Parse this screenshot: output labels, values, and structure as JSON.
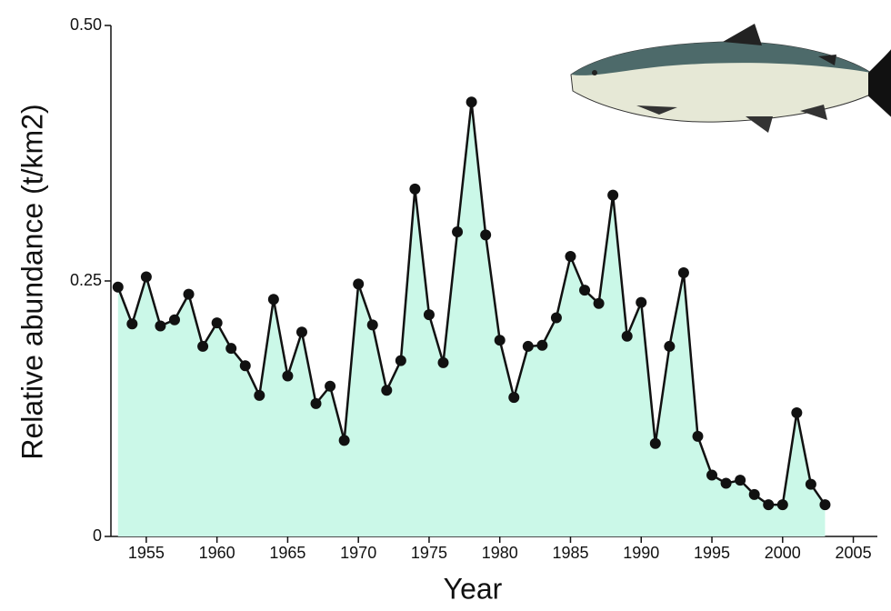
{
  "chart_data": {
    "type": "line",
    "x_label": "Year",
    "y_label": "Relative abundance (t/km2)",
    "x": [
      1953,
      1954,
      1955,
      1956,
      1957,
      1958,
      1959,
      1960,
      1961,
      1962,
      1963,
      1964,
      1965,
      1966,
      1967,
      1968,
      1969,
      1970,
      1971,
      1972,
      1973,
      1974,
      1975,
      1976,
      1977,
      1978,
      1979,
      1980,
      1981,
      1982,
      1983,
      1984,
      1985,
      1986,
      1987,
      1988,
      1989,
      1990,
      1991,
      1992,
      1993,
      1994,
      1995,
      1996,
      1997,
      1998,
      1999,
      2000,
      2001,
      2002,
      2003
    ],
    "series": [
      {
        "color": "#111111",
        "fill": "#cbf8e8",
        "values": [
          0.244,
          0.208,
          0.254,
          0.206,
          0.212,
          0.237,
          0.186,
          0.209,
          0.184,
          0.167,
          0.138,
          0.232,
          0.157,
          0.2,
          0.13,
          0.147,
          0.094,
          0.247,
          0.207,
          0.143,
          0.172,
          0.34,
          0.217,
          0.17,
          0.298,
          0.425,
          0.295,
          0.192,
          0.136,
          0.186,
          0.187,
          0.214,
          0.274,
          0.241,
          0.228,
          0.334,
          0.196,
          0.229,
          0.091,
          0.186,
          0.258,
          0.098,
          0.06,
          0.052,
          0.055,
          0.041,
          0.031,
          0.031,
          0.121,
          0.051,
          0.031
        ]
      }
    ],
    "xlim": [
      1952.5,
      2006.7
    ],
    "xticks": [
      1955,
      1960,
      1965,
      1970,
      1975,
      1980,
      1985,
      1990,
      1995,
      2000,
      2005
    ],
    "ylim": [
      0,
      0.5
    ],
    "yticks": [
      0,
      0.25,
      {
        "value": 0.5,
        "label": "0.50"
      }
    ]
  }
}
